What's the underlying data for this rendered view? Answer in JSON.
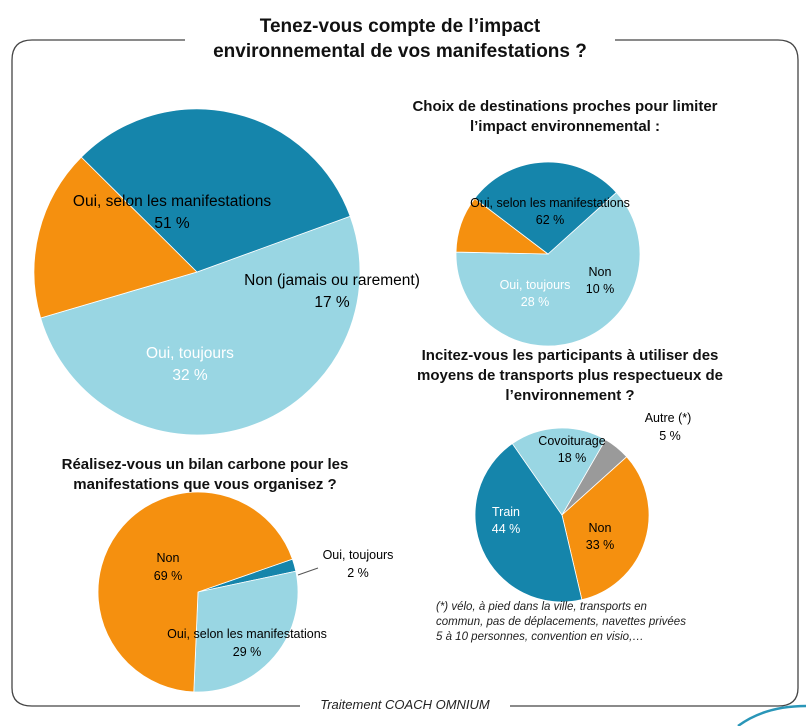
{
  "title": "Tenez-vous compte de l’impact environnemental de vos manifestations ?",
  "source": "Traitement COACH OMNIUM",
  "footnote": "(*) vélo, à pied dans la ville, transports en commun, pas de déplacements, navettes privées 5 à 10 personnes, convention en visio,…",
  "colors": {
    "light_blue": "#99d6e3",
    "orange": "#f5900f",
    "dark_blue": "#1585ab",
    "gray": "#9a9a9a"
  },
  "chart_data": [
    {
      "type": "pie",
      "title": "",
      "slices": [
        {
          "label": "Oui, selon les manifestations",
          "value": 51,
          "value_label": "51 %",
          "color": "#99d6e3"
        },
        {
          "label": "Non (jamais ou rarement)",
          "value": 17,
          "value_label": "17 %",
          "color": "#f5900f"
        },
        {
          "label": "Oui, toujours",
          "value": 32,
          "value_label": "32 %",
          "color": "#1585ab"
        }
      ]
    },
    {
      "type": "pie",
      "title": "Choix de destinations proches pour limiter l’impact environnemental :",
      "slices": [
        {
          "label": "Oui, selon les manifestations",
          "value": 62,
          "value_label": "62 %",
          "color": "#99d6e3"
        },
        {
          "label": "Non",
          "value": 10,
          "value_label": "10 %",
          "color": "#f5900f"
        },
        {
          "label": "Oui, toujours",
          "value": 28,
          "value_label": "28 %",
          "color": "#1585ab"
        }
      ]
    },
    {
      "type": "pie",
      "title": "Incitez-vous les participants à utiliser des moyens de transports plus respectueux de l’environnement ?",
      "slices": [
        {
          "label": "Autre (*)",
          "value": 5,
          "value_label": "5 %",
          "color": "#9a9a9a"
        },
        {
          "label": "Non",
          "value": 33,
          "value_label": "33 %",
          "color": "#f5900f"
        },
        {
          "label": "Train",
          "value": 44,
          "value_label": "44 %",
          "color": "#1585ab"
        },
        {
          "label": "Covoiturage",
          "value": 18,
          "value_label": "18 %",
          "color": "#99d6e3"
        }
      ]
    },
    {
      "type": "pie",
      "title": "Réalisez-vous un bilan carbone pour les manifestations que vous organisez ?",
      "slices": [
        {
          "label": "Oui, toujours",
          "value": 2,
          "value_label": "2 %",
          "color": "#1585ab"
        },
        {
          "label": "Oui, selon les manifestations",
          "value": 29,
          "value_label": "29 %",
          "color": "#99d6e3"
        },
        {
          "label": "Non",
          "value": 69,
          "value_label": "69 %",
          "color": "#f5900f"
        }
      ]
    }
  ]
}
